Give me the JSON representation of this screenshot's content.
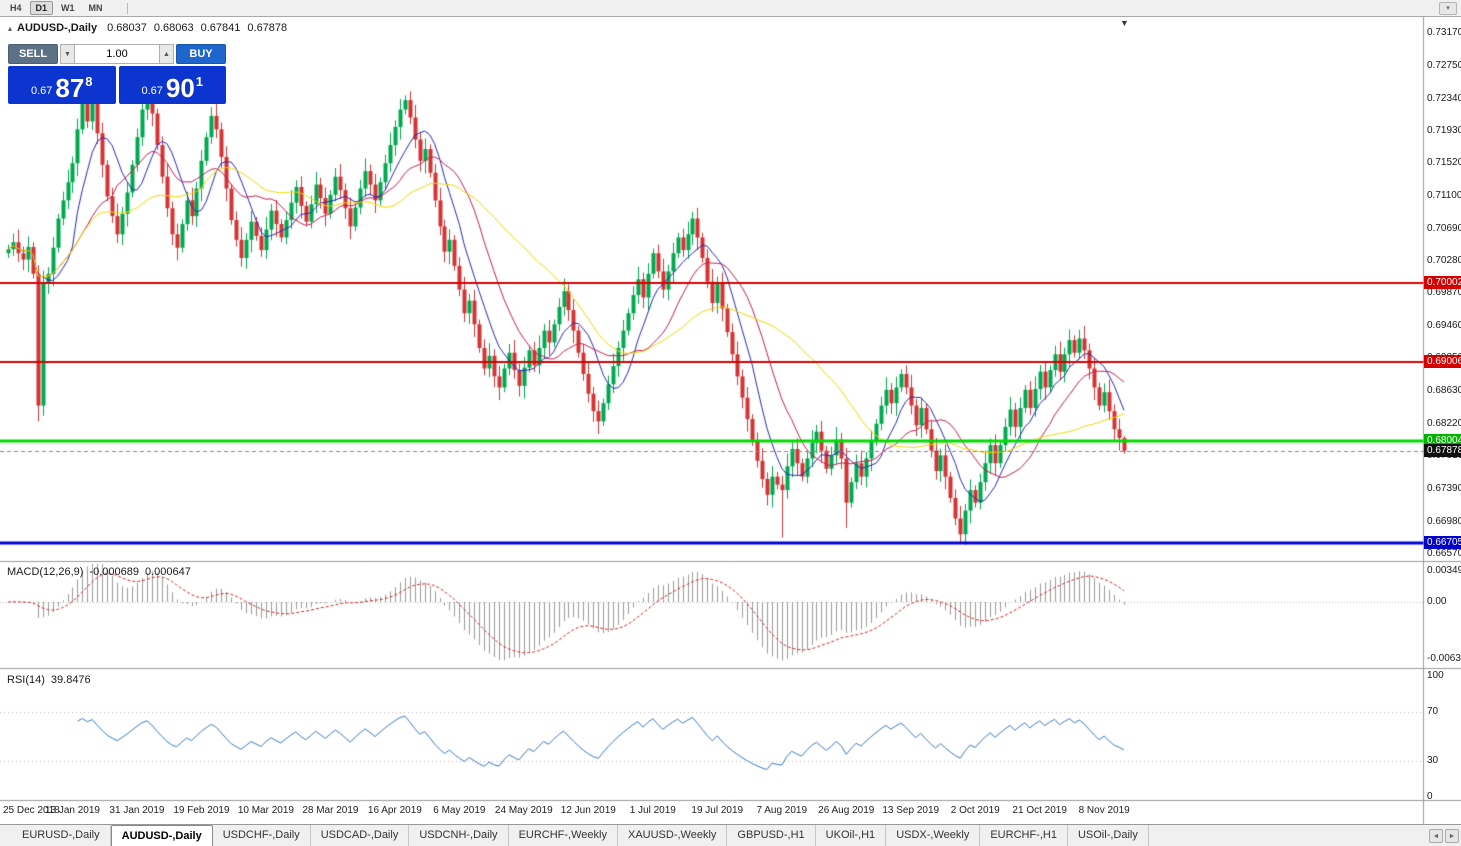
{
  "toolbar": {
    "items": [
      "H4",
      "D1",
      "W1",
      "MN"
    ],
    "active": "D1"
  },
  "icons": {
    "collapse": "▴",
    "volume_down": "▼",
    "volume_up": "▲",
    "shift_marker": "▼",
    "tab_scroll_left": "◄",
    "tab_scroll_right": "►",
    "chart_menu": "▾"
  },
  "chart": {
    "symbol_title": "AUDUSD-,Daily",
    "ohlc": {
      "open": "0.68037",
      "high": "0.68063",
      "low": "0.67841",
      "close": "0.67878"
    }
  },
  "one_click": {
    "sell_label": "SELL",
    "buy_label": "BUY",
    "volume": "1.00",
    "sell_price": {
      "prefix": "0.67",
      "big": "87",
      "sup": "8"
    },
    "buy_price": {
      "prefix": "0.67",
      "big": "90",
      "sup": "1"
    },
    "colors": {
      "sell_header": "#5C7186",
      "buy_header": "#1F66CC",
      "price_panel": "#0B35CE"
    }
  },
  "macd": {
    "label": "MACD(12,26,9)",
    "value": "-0.000689",
    "signal_value": "0.000647",
    "axis_labels": [
      "0.00349",
      "0.00",
      "-0.00637"
    ]
  },
  "rsi": {
    "label": "RSI(14)",
    "value": "39.8476",
    "axis_labels": [
      "100",
      "70",
      "30",
      "0"
    ],
    "levels": [
      70,
      30
    ]
  },
  "tabs": {
    "active_index": 1,
    "items": [
      "EURUSD-,Daily",
      "AUDUSD-,Daily",
      "USDCHF-,Daily",
      "USDCAD-,Daily",
      "USDCNH-,Daily",
      "EURCHF-,Weekly",
      "XAUUSD-,Weekly",
      "GBPUSD-,H1",
      "UKOil-,H1",
      "USDX-,Weekly",
      "EURCHF-,H1",
      "USOil-,Daily"
    ]
  },
  "chart_data": {
    "type": "candlestick",
    "symbol": "AUDUSD",
    "timeframe": "Daily",
    "x_labels": [
      "25 Dec 2018",
      "13 Jan 2019",
      "31 Jan 2019",
      "19 Feb 2019",
      "10 Mar 2019",
      "28 Mar 2019",
      "16 Apr 2019",
      "6 May 2019",
      "24 May 2019",
      "12 Jun 2019",
      "1 Jul 2019",
      "19 Jul 2019",
      "7 Aug 2019",
      "26 Aug 2019",
      "13 Sep 2019",
      "2 Oct 2019",
      "21 Oct 2019",
      "8 Nov 2019"
    ],
    "bars_per_label": 13,
    "first_open": 0.7038,
    "closes": [
      0.7043,
      0.7052,
      0.7038,
      0.703,
      0.7046,
      0.7012,
      0.6845,
      0.7,
      0.7012,
      0.7045,
      0.7082,
      0.7105,
      0.7128,
      0.7152,
      0.7195,
      0.7228,
      0.7205,
      0.7232,
      0.719,
      0.715,
      0.711,
      0.7085,
      0.7062,
      0.7088,
      0.7115,
      0.715,
      0.7185,
      0.722,
      0.7242,
      0.7215,
      0.7175,
      0.7135,
      0.7095,
      0.7062,
      0.7045,
      0.7075,
      0.7105,
      0.7085,
      0.712,
      0.7155,
      0.7185,
      0.7212,
      0.7195,
      0.716,
      0.712,
      0.708,
      0.7055,
      0.7032,
      0.7055,
      0.7078,
      0.706,
      0.7042,
      0.7068,
      0.7092,
      0.7075,
      0.7058,
      0.708,
      0.7102,
      0.7122,
      0.7098,
      0.7078,
      0.71,
      0.7125,
      0.7108,
      0.7088,
      0.7112,
      0.7135,
      0.7118,
      0.7095,
      0.7072,
      0.7096,
      0.712,
      0.7142,
      0.7125,
      0.7105,
      0.7128,
      0.7152,
      0.7175,
      0.7198,
      0.722,
      0.7232,
      0.721,
      0.7182,
      0.7155,
      0.717,
      0.714,
      0.7105,
      0.7072,
      0.704,
      0.7055,
      0.7022,
      0.6992,
      0.6962,
      0.6978,
      0.6948,
      0.6918,
      0.6892,
      0.6908,
      0.6882,
      0.6868,
      0.6892,
      0.6912,
      0.689,
      0.687,
      0.6893,
      0.6915,
      0.6896,
      0.6918,
      0.694,
      0.6925,
      0.6948,
      0.697,
      0.699,
      0.6966,
      0.694,
      0.6912,
      0.6885,
      0.686,
      0.6838,
      0.6825,
      0.6848,
      0.6872,
      0.6895,
      0.6918,
      0.694,
      0.6962,
      0.6985,
      0.7005,
      0.6982,
      0.7012,
      0.7038,
      0.7015,
      0.6992,
      0.7015,
      0.7038,
      0.7058,
      0.7042,
      0.7062,
      0.7082,
      0.7058,
      0.7032,
      0.7002,
      0.6975,
      0.7,
      0.6968,
      0.6938,
      0.691,
      0.6882,
      0.6855,
      0.6828,
      0.68,
      0.6775,
      0.6752,
      0.6732,
      0.6755,
      0.6745,
      0.6738,
      0.6768,
      0.679,
      0.6772,
      0.6755,
      0.6778,
      0.6798,
      0.6812,
      0.6788,
      0.6765,
      0.6782,
      0.6802,
      0.6778,
      0.6722,
      0.6748,
      0.6772,
      0.6755,
      0.6778,
      0.68,
      0.6822,
      0.6845,
      0.6865,
      0.6848,
      0.6868,
      0.6885,
      0.6868,
      0.6845,
      0.682,
      0.6842,
      0.6815,
      0.6788,
      0.6762,
      0.6782,
      0.6755,
      0.6728,
      0.6702,
      0.6682,
      0.6712,
      0.6738,
      0.6722,
      0.6748,
      0.6772,
      0.6795,
      0.6772,
      0.6795,
      0.6818,
      0.684,
      0.6818,
      0.6842,
      0.6865,
      0.6842,
      0.6866,
      0.6888,
      0.6868,
      0.689,
      0.691,
      0.6888,
      0.691,
      0.6928,
      0.6912,
      0.693,
      0.6915,
      0.6892,
      0.6868,
      0.6845,
      0.6862,
      0.6838,
      0.6815,
      0.6804,
      0.6788
    ],
    "spike_lows": {
      "6": 0.6825,
      "7": 0.6832,
      "119": 0.6812,
      "156": 0.6678,
      "169": 0.669,
      "192": 0.667
    },
    "last_bar": {
      "open": 0.68037,
      "high": 0.68063,
      "low": 0.67841,
      "close": 0.67878
    },
    "wick_model": {
      "base": 0.0006,
      "step": 0.00025
    },
    "colors": {
      "up": "#00A84F",
      "down": "#D33434",
      "ma_fast": "#2428B4",
      "ma_mid": "#C41E50",
      "ma_slow": "#EFD800",
      "macd_hist": "#9B9B9B",
      "macd_signal": "#CC2A2A",
      "rsi": "#3A77C0"
    },
    "moving_averages": [
      {
        "period": 8,
        "color_key": "ma_fast"
      },
      {
        "period": 16,
        "color_key": "ma_mid"
      },
      {
        "period": 34,
        "color_key": "ma_slow"
      }
    ],
    "price_axis": {
      "labels": [
        "0.73170",
        "0.72750",
        "0.72340",
        "0.71930",
        "0.71520",
        "0.71100",
        "0.70690",
        "0.70280",
        "0.69870",
        "0.69460",
        "0.69050",
        "0.68630",
        "0.68220",
        "0.67810",
        "0.67390",
        "0.66980",
        "0.66570"
      ]
    },
    "hlines": [
      {
        "value": 0.70002,
        "color": "#D40000",
        "width": 2
      },
      {
        "value": 0.69006,
        "color": "#D40000",
        "width": 2
      },
      {
        "value": 0.68004,
        "color": "#00DC00",
        "width": 3
      },
      {
        "value": 0.66705,
        "color": "#0000D4",
        "width": 3
      }
    ],
    "current_price": {
      "value": 0.67878,
      "line_color": "#888888"
    },
    "badges": [
      {
        "text": "0.70002",
        "value": 0.70002,
        "color": "#D40000"
      },
      {
        "text": "0.69006",
        "value": 0.69006,
        "color": "#D40000"
      },
      {
        "text": "0.68004",
        "value": 0.68004,
        "color": "#00B400"
      },
      {
        "text": "0.67878",
        "value": 0.67878,
        "color": "#101010"
      },
      {
        "text": "0.66705",
        "value": 0.66705,
        "color": "#0000C8"
      }
    ],
    "macd_settings": {
      "fast": 12,
      "slow": 26,
      "signal": 9
    },
    "rsi_settings": {
      "period": 14
    }
  }
}
